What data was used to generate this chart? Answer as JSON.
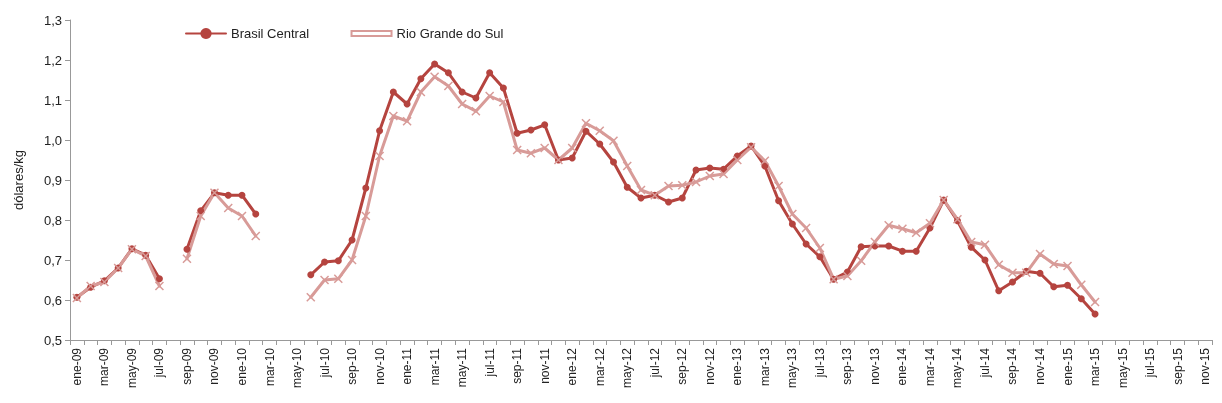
{
  "chart_data": {
    "type": "line",
    "ylabel": "dólares/kg",
    "categories": [
      "ene-09",
      null,
      "mar-09",
      null,
      "may-09",
      null,
      "jul-09",
      null,
      "sep-09",
      null,
      "nov-09",
      null,
      "ene-10",
      null,
      "mar-10",
      null,
      "may-10",
      null,
      "jul-10",
      null,
      "sep-10",
      null,
      "nov-10",
      null,
      "ene-11",
      null,
      "mar-11",
      null,
      "may-11",
      null,
      "jul-11",
      null,
      "sep-11",
      null,
      "nov-11",
      null,
      "ene-12",
      null,
      "mar-12",
      null,
      "may-12",
      null,
      "jul-12",
      null,
      "sep-12",
      null,
      "nov-12",
      null,
      "ene-13",
      null,
      "mar-13",
      null,
      "may-13",
      null,
      "jul-13",
      null,
      "sep-13",
      null,
      "nov-13",
      null,
      "ene-14",
      null,
      "mar-14",
      null,
      "may-14",
      null,
      "jul-14",
      null,
      "sep-14",
      null,
      "nov-14",
      null,
      "ene-15",
      null,
      "mar-15",
      null,
      "may-15",
      null,
      "jul-15",
      null,
      "sep-15",
      null,
      "nov-15"
    ],
    "series": [
      {
        "name": "Brasil Central",
        "color": "#b5443f",
        "marker": "circle",
        "values": [
          0.607,
          0.632,
          0.648,
          0.68,
          0.728,
          0.712,
          0.653,
          null,
          0.727,
          0.823,
          0.868,
          0.862,
          0.862,
          0.815,
          null,
          null,
          null,
          0.663,
          0.695,
          0.698,
          0.75,
          0.88,
          1.023,
          1.12,
          1.09,
          1.153,
          1.19,
          1.168,
          1.12,
          1.105,
          1.168,
          1.13,
          1.017,
          1.025,
          1.038,
          0.95,
          0.955,
          1.022,
          0.99,
          0.945,
          0.882,
          0.855,
          0.862,
          0.845,
          0.855,
          0.925,
          0.93,
          0.927,
          0.96,
          0.985,
          0.935,
          0.848,
          0.79,
          0.74,
          0.708,
          0.652,
          0.67,
          0.733,
          0.735,
          0.735,
          0.722,
          0.722,
          0.78,
          0.85,
          0.798,
          0.732,
          0.7,
          0.623,
          0.645,
          0.672,
          0.667,
          0.633,
          0.637,
          0.603,
          0.565,
          null,
          null,
          null,
          null,
          null,
          null,
          null,
          null
        ]
      },
      {
        "name": "Rio Grande do Sul",
        "color": "#d89b98",
        "marker": "cross",
        "values": [
          0.605,
          0.635,
          0.645,
          0.68,
          0.727,
          0.71,
          0.635,
          null,
          0.703,
          0.81,
          0.868,
          0.83,
          0.81,
          0.76,
          null,
          null,
          null,
          0.607,
          0.65,
          0.653,
          0.7,
          0.81,
          0.96,
          1.06,
          1.047,
          1.12,
          1.158,
          1.135,
          1.09,
          1.072,
          1.11,
          1.095,
          0.975,
          0.967,
          0.98,
          0.95,
          0.98,
          1.042,
          1.023,
          0.998,
          0.935,
          0.875,
          0.862,
          0.885,
          0.887,
          0.895,
          0.91,
          0.915,
          0.95,
          0.982,
          0.948,
          0.885,
          0.815,
          0.78,
          0.73,
          0.652,
          0.66,
          0.698,
          0.745,
          0.787,
          0.778,
          0.768,
          0.792,
          0.85,
          0.802,
          0.745,
          0.738,
          0.688,
          0.668,
          0.668,
          0.715,
          0.69,
          0.685,
          0.638,
          0.595,
          null,
          null,
          null,
          null,
          null,
          null,
          null,
          null
        ]
      }
    ],
    "ylim": [
      0.5,
      1.3
    ],
    "yticks": [
      {
        "value": 0.5,
        "label": "0,5"
      },
      {
        "value": 0.6,
        "label": "0,6"
      },
      {
        "value": 0.7,
        "label": "0,7"
      },
      {
        "value": 0.8,
        "label": "0,8"
      },
      {
        "value": 0.9,
        "label": "0,9"
      },
      {
        "value": 1.0,
        "label": "1,0"
      },
      {
        "value": 1.1,
        "label": "1,1"
      },
      {
        "value": 1.2,
        "label": "1,2"
      },
      {
        "value": 1.3,
        "label": "1,3"
      }
    ],
    "grid": false,
    "legend": "top left",
    "line_style": "solid"
  }
}
